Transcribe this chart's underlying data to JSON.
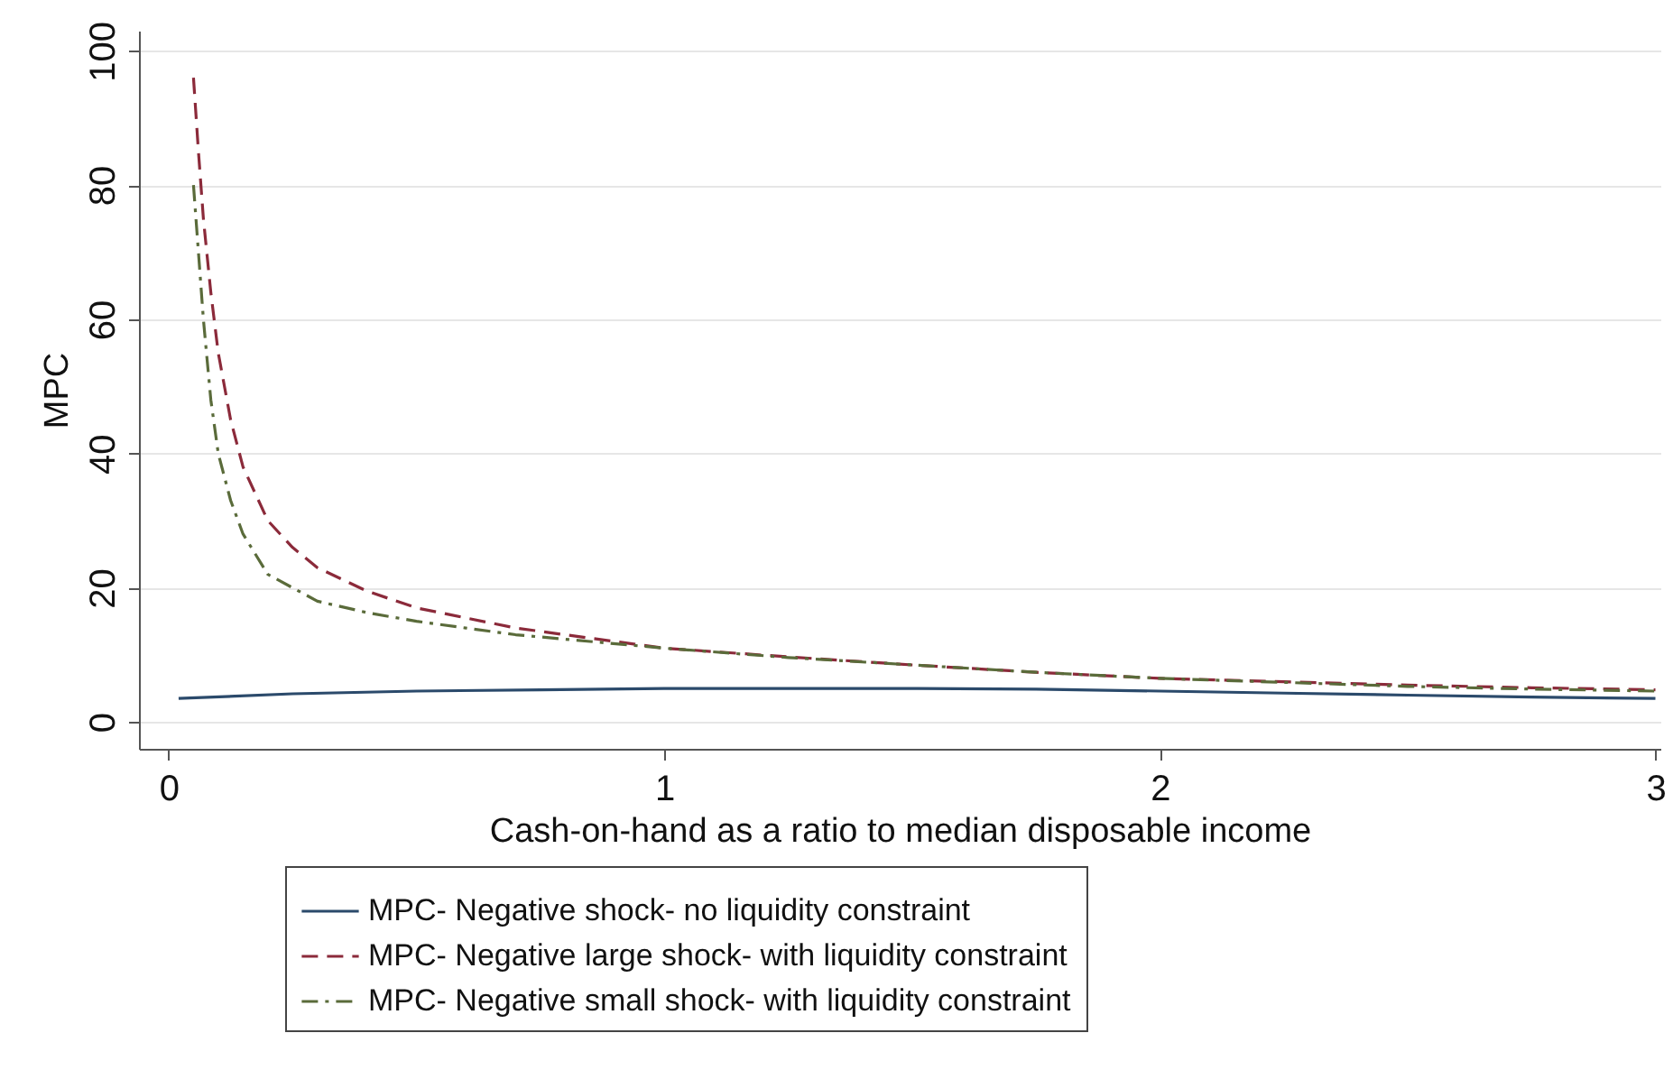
{
  "chart_data": {
    "type": "line",
    "xlabel": "Cash-on-hand as a ratio to median disposable income",
    "ylabel": "MPC",
    "xlim": [
      -0.06,
      3.01
    ],
    "ylim": [
      -4,
      103
    ],
    "xticks": [
      0,
      1,
      2,
      3
    ],
    "yticks": [
      0,
      20,
      40,
      60,
      80,
      100
    ],
    "grid": "y",
    "legend": "bottom",
    "series": [
      {
        "name": "MPC- Negative shock- no liquidity constraint",
        "color": "#2b4a6b",
        "line_style": "solid",
        "x": [
          0.02,
          0.25,
          0.5,
          0.75,
          1,
          1.25,
          1.5,
          1.75,
          2,
          2.25,
          2.5,
          2.75,
          3
        ],
        "values": [
          3.5,
          4.2,
          4.6,
          4.8,
          5,
          5,
          5,
          4.9,
          4.6,
          4.3,
          4,
          3.7,
          3.5
        ]
      },
      {
        "name": "MPC- Negative large shock- with liquidity constraint",
        "color": "#8b2a3a",
        "line_style": "dashed",
        "x": [
          0.05,
          0.06,
          0.07,
          0.085,
          0.1,
          0.125,
          0.15,
          0.2,
          0.25,
          0.3,
          0.4,
          0.5,
          0.6,
          0.7,
          0.85,
          1,
          1.25,
          1.5,
          1.75,
          2,
          2.25,
          2.5,
          2.75,
          3
        ],
        "values": [
          96,
          85,
          75,
          64,
          55,
          45,
          38,
          30,
          26,
          23,
          19.5,
          17,
          15.5,
          14,
          12.5,
          11,
          9.7,
          8.5,
          7.4,
          6.5,
          6,
          5.5,
          5.1,
          4.8
        ]
      },
      {
        "name": "MPC- Negative small shock- with liquidity constraint",
        "color": "#5a6b3a",
        "line_style": "dashdot",
        "x": [
          0.05,
          0.06,
          0.07,
          0.085,
          0.1,
          0.125,
          0.15,
          0.2,
          0.25,
          0.3,
          0.4,
          0.5,
          0.6,
          0.7,
          0.85,
          1,
          1.25,
          1.5,
          1.75,
          2,
          2.25,
          2.5,
          2.75,
          3
        ],
        "values": [
          80,
          70,
          60,
          48,
          40,
          33,
          28,
          22,
          20,
          18,
          16.3,
          15,
          14,
          13,
          12,
          11,
          9.6,
          8.5,
          7.4,
          6.5,
          5.9,
          5.3,
          4.9,
          4.6
        ]
      }
    ]
  }
}
